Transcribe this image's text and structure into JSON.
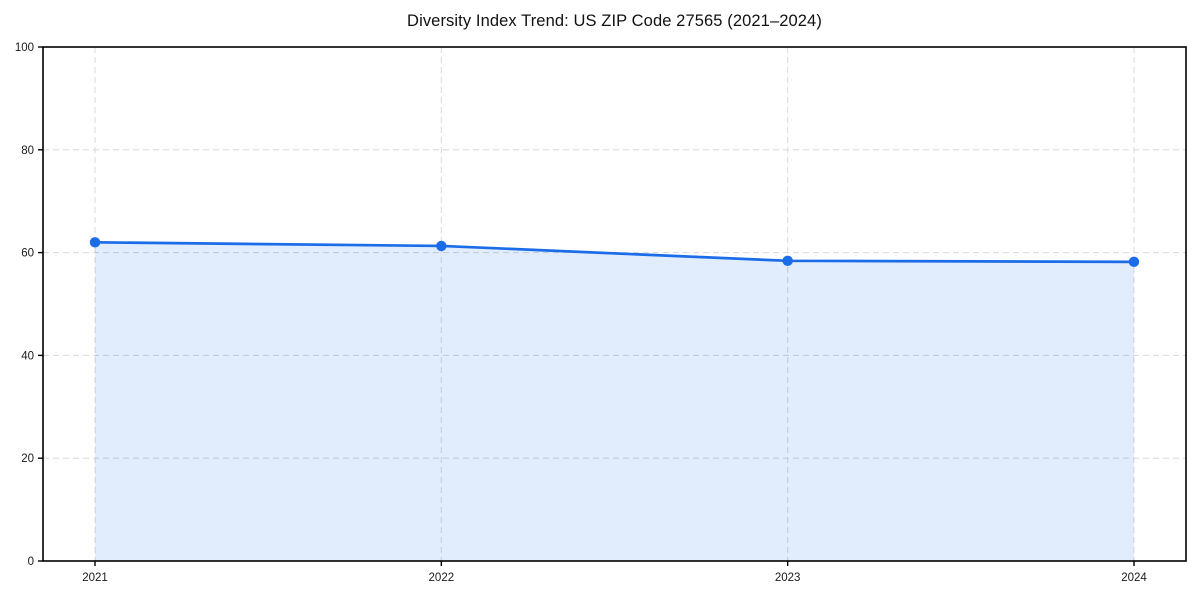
{
  "page": {
    "background": "#ffffff"
  },
  "chart_data": {
    "type": "area",
    "title": "Diversity Index Trend: US ZIP Code 27565 (2021–2024)",
    "x": [
      "2021",
      "2022",
      "2023",
      "2024"
    ],
    "series": [
      {
        "name": "Diversity Index",
        "values": [
          62.0,
          61.3,
          58.4,
          58.2
        ]
      }
    ],
    "xlabel": "",
    "ylabel": "",
    "ylim": [
      0,
      100
    ],
    "yticks": [
      0,
      20,
      40,
      60,
      80,
      100
    ],
    "grid": true,
    "grid_style": "dashed",
    "legend": "none",
    "colors": {
      "line": "#1b6ce8",
      "marker": "#1b6ce8",
      "fill": "#1b6ce8",
      "fill_opacity": 0.13,
      "grid": "#dcdcdc",
      "axis": "#000000",
      "text": "#1a1a1a"
    }
  }
}
